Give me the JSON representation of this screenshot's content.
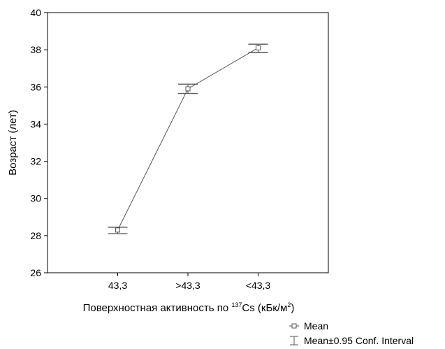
{
  "chart_data": {
    "type": "line",
    "categories": [
      "43,3",
      ">43,3",
      "<43,3"
    ],
    "series": [
      {
        "name": "Mean",
        "values": [
          28.3,
          35.9,
          38.1
        ],
        "ci_lower": [
          28.1,
          35.65,
          37.85
        ],
        "ci_upper": [
          28.45,
          36.15,
          38.3
        ]
      }
    ],
    "xlabel": {
      "prefix": "Поверхностная активность по ",
      "sup1": "137",
      "middle": "Cs (кБк/м",
      "sup2": "2",
      "suffix": ")"
    },
    "ylabel": "Возраст (лет)",
    "ylim": [
      26,
      40
    ],
    "yticks": [
      "26",
      "28",
      "30",
      "32",
      "34",
      "36",
      "38",
      "40"
    ],
    "grid": false,
    "legend": {
      "placement": "bottom-right",
      "entries": [
        "Mean",
        "Mean±0.95 Conf. Interval"
      ]
    },
    "colors": {
      "line": "#555555",
      "axis": "#000000"
    }
  }
}
